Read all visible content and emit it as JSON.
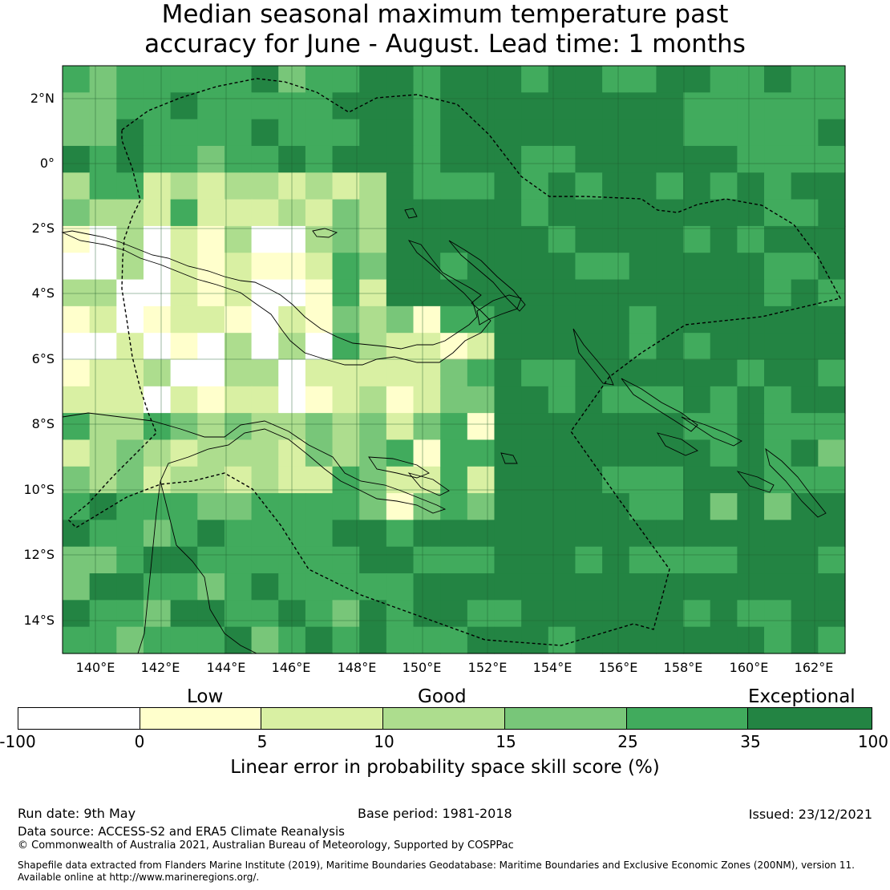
{
  "title": {
    "line1": "Median seasonal maximum temperature past",
    "line2": "accuracy for June - August. Lead time: 1 months"
  },
  "map": {
    "lon_labels": [
      "140°E",
      "142°E",
      "144°E",
      "146°E",
      "148°E",
      "150°E",
      "152°E",
      "154°E",
      "156°E",
      "158°E",
      "160°E",
      "162°E"
    ],
    "lat_labels": [
      "2°N",
      "0°",
      "2°S",
      "4°S",
      "6°S",
      "8°S",
      "10°S",
      "12°S",
      "14°S"
    ]
  },
  "colorbar": {
    "categories": [
      "Low",
      "Good",
      "Exceptional"
    ],
    "ticks": [
      "-100",
      "0",
      "5",
      "10",
      "15",
      "25",
      "35",
      "100"
    ],
    "colors": [
      "#ffffff",
      "#ffffcc",
      "#d9f0a3",
      "#addd8e",
      "#78c679",
      "#41ab5d",
      "#238443"
    ],
    "label": "Linear error in probability space skill score (%)"
  },
  "footer": {
    "run_date": "Run date: 9th May",
    "base_period": "Base period: 1981-2018",
    "issued": "Issued: 23/12/2021",
    "data_source": "Data source: ACCESS-S2 and ERA5 Climate Reanalysis",
    "copyright": "© Commonwealth of Australia 2021, Australian Bureau of Meteorology, Supported by COSPPac",
    "shapefile_1": "Shapefile data extracted from Flanders Marine Institute (2019), Maritime Boundaries Geodatabase: Maritime Boundaries and Exclusive Economic Zones (200NM), version 11.",
    "shapefile_2": "Available online at http://www.marineregions.org/."
  }
}
